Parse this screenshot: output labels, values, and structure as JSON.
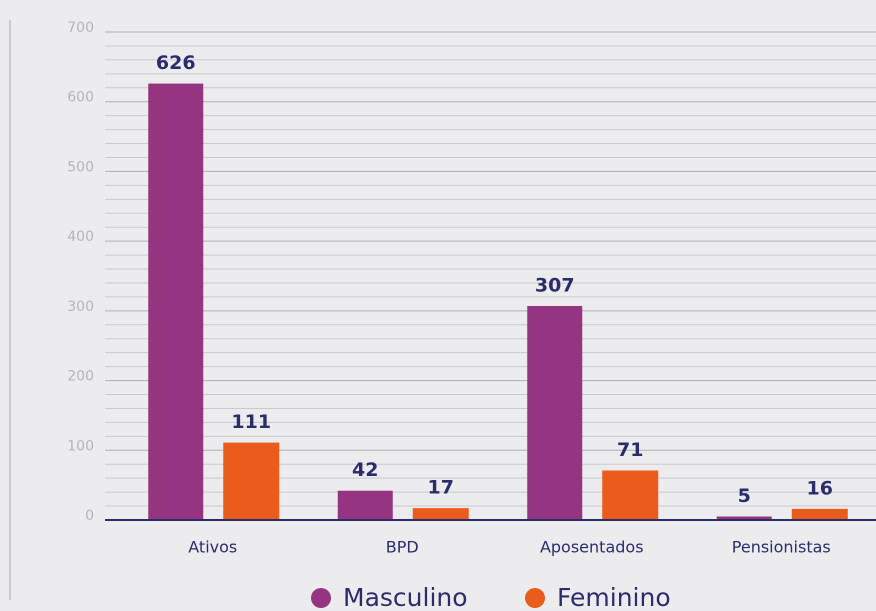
{
  "chart_data": {
    "type": "bar",
    "categories": [
      "Ativos",
      "BPD",
      "Aposentados",
      "Pensionistas"
    ],
    "series": [
      {
        "name": "Masculino",
        "color": "#953581",
        "values": [
          626,
          42,
          307,
          5
        ]
      },
      {
        "name": "Feminino",
        "color": "#e95c1c",
        "values": [
          111,
          17,
          71,
          16
        ]
      }
    ],
    "ylim": [
      0,
      700
    ],
    "yticks": [
      0,
      100,
      200,
      300,
      400,
      500,
      600,
      700
    ],
    "yminorticks": [
      20,
      40,
      60,
      80,
      120,
      140,
      160,
      180,
      220,
      240,
      260,
      280,
      320,
      340,
      360,
      380,
      420,
      440,
      460,
      480,
      520,
      540,
      560,
      580,
      620,
      640,
      660,
      680
    ],
    "grid": true,
    "legend": "bottom"
  }
}
